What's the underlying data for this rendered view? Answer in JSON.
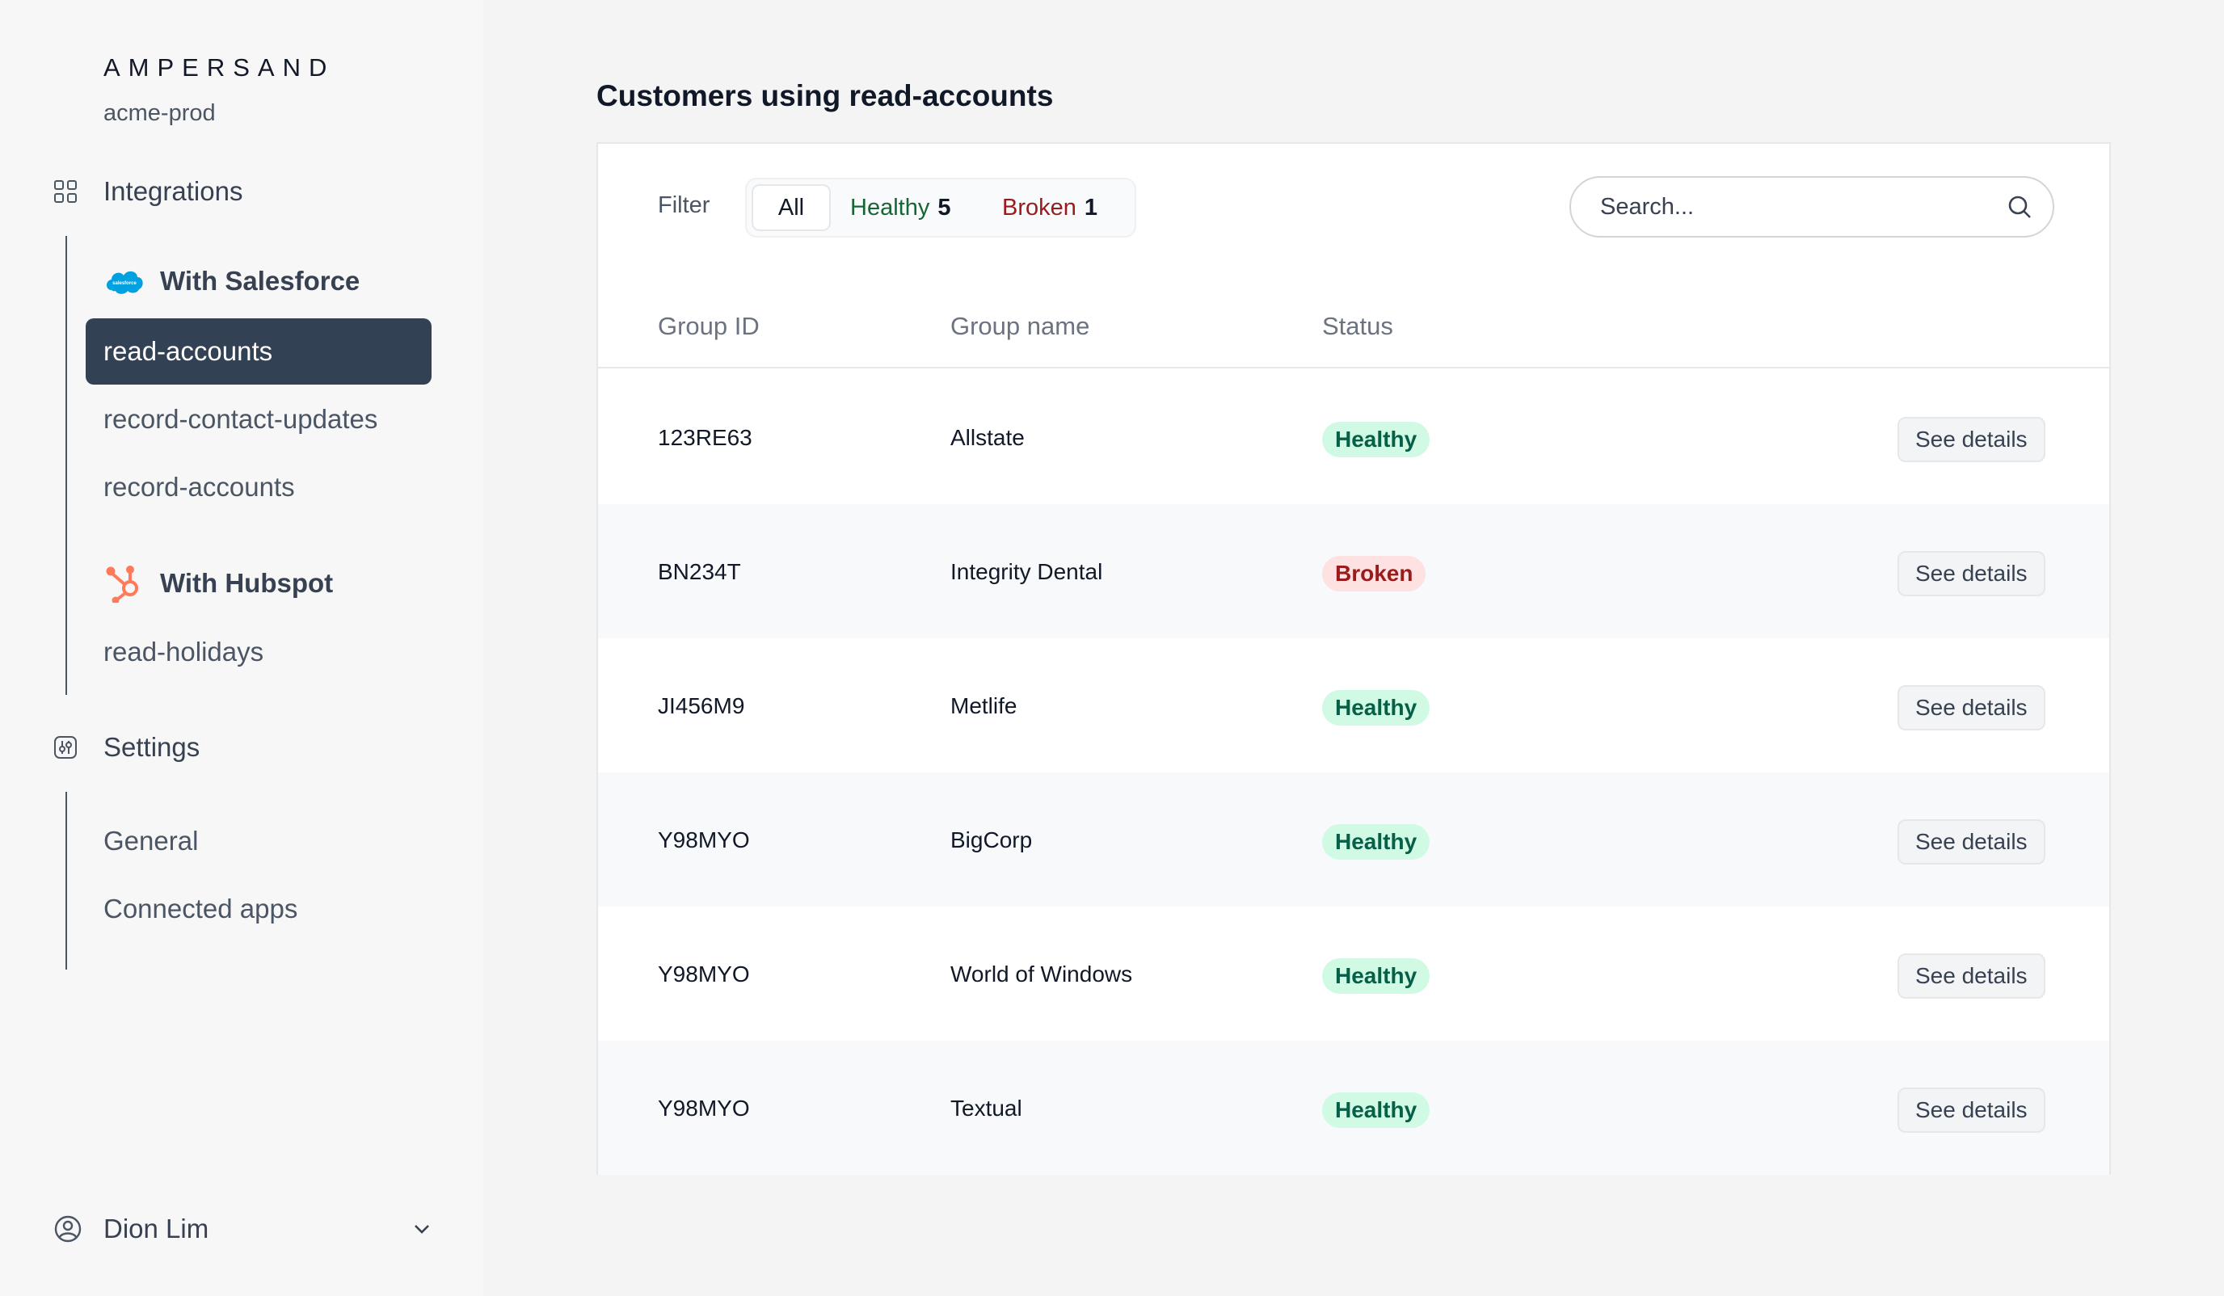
{
  "brand": "AMPERSAND",
  "workspace": "acme-prod",
  "sidebar": {
    "integrations_label": "Integrations",
    "providers": [
      {
        "name": "With Salesforce",
        "icon": "salesforce-icon",
        "items": [
          "read-accounts",
          "record-contact-updates",
          "record-accounts"
        ],
        "active": "read-accounts"
      },
      {
        "name": "With Hubspot",
        "icon": "hubspot-icon",
        "items": [
          "read-holidays"
        ]
      }
    ],
    "settings_label": "Settings",
    "settings_items": [
      "General",
      "Connected apps"
    ],
    "user_name": "Dion Lim"
  },
  "main": {
    "title": "Customers using read-accounts",
    "filter": {
      "label": "Filter",
      "all_label": "All",
      "healthy_label": "Healthy",
      "healthy_count": "5",
      "broken_label": "Broken",
      "broken_count": "1"
    },
    "search": {
      "placeholder": "Search..."
    },
    "table": {
      "columns": [
        "Group ID",
        "Group name",
        "Status"
      ],
      "action_label": "See details",
      "rows": [
        {
          "id": "123RE63",
          "name": "Allstate",
          "status": "Healthy"
        },
        {
          "id": "BN234T",
          "name": "Integrity Dental",
          "status": "Broken"
        },
        {
          "id": "JI456M9",
          "name": "Metlife",
          "status": "Healthy"
        },
        {
          "id": "Y98MYO",
          "name": "BigCorp",
          "status": "Healthy"
        },
        {
          "id": "Y98MYO",
          "name": "World of Windows",
          "status": "Healthy"
        },
        {
          "id": "Y98MYO",
          "name": "Textual",
          "status": "Healthy"
        }
      ]
    }
  },
  "colors": {
    "active_nav_bg": "#334155",
    "healthy_text": "#065f46",
    "healthy_bg": "#d1fae5",
    "broken_text": "#991b1b",
    "broken_bg": "#fee2e2",
    "salesforce_blue": "#00a1e0",
    "hubspot_orange": "#ff7a59"
  }
}
